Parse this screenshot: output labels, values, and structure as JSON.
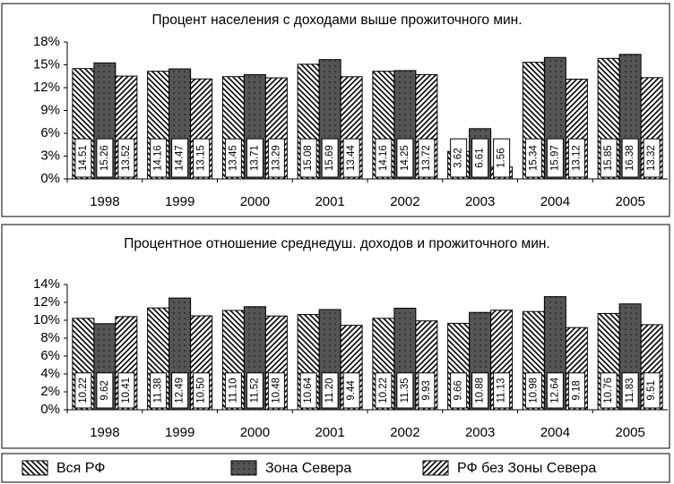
{
  "chart_data": [
    {
      "type": "bar",
      "title": "Процент населения с доходами выше прожиточного мин.",
      "categories": [
        "1998",
        "1999",
        "2000",
        "2001",
        "2002",
        "2003",
        "2004",
        "2005"
      ],
      "ylim": [
        0,
        18
      ],
      "yticks": [
        {
          "value": 0,
          "label": "0%"
        },
        {
          "value": 3,
          "label": "3%"
        },
        {
          "value": 6,
          "label": "6%"
        },
        {
          "value": 9,
          "label": "9%"
        },
        {
          "value": 12,
          "label": "12%"
        },
        {
          "value": 15,
          "label": "15%"
        },
        {
          "value": 18,
          "label": "18%"
        }
      ],
      "grid": false,
      "series": [
        {
          "name": "Вся РФ",
          "color": "#000000",
          "pattern": "backslash",
          "values": [
            14.51,
            14.16,
            13.45,
            15.08,
            14.16,
            3.62,
            15.34,
            15.85
          ],
          "value_labels": [
            "14.51",
            "14.16",
            "13.45",
            "15.08",
            "14.16",
            "3.62",
            "15.34",
            "15.85"
          ]
        },
        {
          "name": "Зона Севера",
          "color": "#555555",
          "pattern": "solid",
          "values": [
            15.26,
            14.47,
            13.71,
            15.69,
            14.25,
            6.61,
            15.97,
            16.38
          ],
          "value_labels": [
            "15.26",
            "14.47",
            "13.71",
            "15.69",
            "14.25",
            "6.61",
            "15.97",
            "16.38"
          ]
        },
        {
          "name": "РФ без Зоны Севера",
          "color": "#000000",
          "pattern": "slash",
          "values": [
            13.52,
            13.15,
            13.29,
            13.44,
            13.72,
            1.56,
            13.12,
            13.32
          ],
          "value_labels": [
            "13.52",
            "13.15",
            "13.29",
            "13.44",
            "13.72",
            "1.56",
            "13.12",
            "13.32"
          ]
        }
      ]
    },
    {
      "type": "bar",
      "title": "Процентное отношение среднедуш. доходов и прожиточного мин.",
      "categories": [
        "1998",
        "1999",
        "2000",
        "2001",
        "2002",
        "2003",
        "2004",
        "2005"
      ],
      "ylim": [
        0,
        14
      ],
      "yticks": [
        {
          "value": 0,
          "label": "0%"
        },
        {
          "value": 2,
          "label": "2%"
        },
        {
          "value": 4,
          "label": "4%"
        },
        {
          "value": 6,
          "label": "6%"
        },
        {
          "value": 8,
          "label": "8%"
        },
        {
          "value": 10,
          "label": "10%"
        },
        {
          "value": 12,
          "label": "12%"
        },
        {
          "value": 14,
          "label": "14%"
        }
      ],
      "grid": false,
      "series": [
        {
          "color": "#000000",
          "pattern": "backslash",
          "values": [
            10.22,
            11.38,
            11.1,
            10.64,
            10.22,
            9.66,
            10.98,
            10.76
          ],
          "value_labels": [
            "10.22",
            "11.38",
            "11.10",
            "10.64",
            "10.22",
            "9.66",
            "10.98",
            "10.76"
          ]
        },
        {
          "color": "#555555",
          "pattern": "solid",
          "values": [
            9.62,
            12.49,
            11.52,
            11.2,
            11.35,
            10.88,
            12.64,
            11.83
          ],
          "value_labels": [
            "9.62",
            "12.49",
            "11.52",
            "11.20",
            "11.35",
            "10.88",
            "12.64",
            "11.83"
          ]
        },
        {
          "color": "#000000",
          "pattern": "slash",
          "values": [
            10.41,
            10.5,
            10.48,
            9.44,
            9.93,
            11.13,
            9.18,
            9.51
          ],
          "value_labels": [
            "10.41",
            "10.50",
            "10.48",
            "9.44",
            "9.93",
            "11.13",
            "9.18",
            "9.51"
          ]
        }
      ]
    }
  ]
}
